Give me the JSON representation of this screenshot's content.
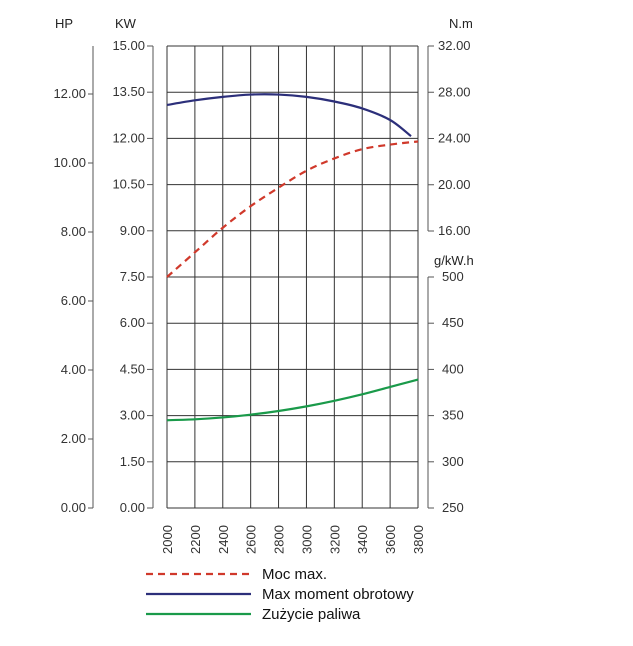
{
  "chart_data": {
    "type": "line",
    "x": [
      2000,
      2200,
      2400,
      2600,
      2800,
      3000,
      3200,
      3400,
      3600,
      3800
    ],
    "xlim": [
      2000,
      3800
    ],
    "grid": true,
    "legend_position": "bottom",
    "axes": {
      "hp": {
        "label": "HP",
        "ticks": [
          "0.00",
          "2.00",
          "4.00",
          "6.00",
          "8.00",
          "10.00",
          "12.00"
        ],
        "range": [
          0,
          12
        ]
      },
      "kw": {
        "label": "KW",
        "ticks": [
          "0.00",
          "1.50",
          "3.00",
          "4.50",
          "6.00",
          "7.50",
          "9.00",
          "10.50",
          "12.00",
          "13.50",
          "15.00"
        ],
        "range": [
          0,
          15
        ]
      },
      "nm": {
        "label": "N.m",
        "ticks": [
          "16.00",
          "20.00",
          "24.00",
          "28.00",
          "32.00"
        ],
        "range": [
          16,
          32
        ]
      },
      "gkwh": {
        "label": "g/kW.h",
        "ticks": [
          "250",
          "300",
          "350",
          "400",
          "450",
          "500"
        ],
        "range": [
          250,
          500
        ]
      }
    },
    "series": [
      {
        "name": "Moc max.",
        "axis": "kw",
        "color": "#d0392b",
        "dash": true,
        "x": [
          2000,
          2200,
          2400,
          2600,
          2800,
          3000,
          3200,
          3400,
          3600,
          3800
        ],
        "values": [
          7.5,
          8.3,
          9.1,
          9.8,
          10.4,
          10.95,
          11.35,
          11.65,
          11.8,
          11.9
        ]
      },
      {
        "name": "Max moment obrotowy",
        "axis": "nm",
        "color": "#2c2f7a",
        "dash": false,
        "x": [
          2000,
          2200,
          2400,
          2600,
          2800,
          3000,
          3200,
          3400,
          3600,
          3750
        ],
        "values": [
          26.9,
          27.3,
          27.6,
          27.8,
          27.8,
          27.6,
          27.2,
          26.6,
          25.6,
          24.2
        ]
      },
      {
        "name": "Zużycie paliwa",
        "axis": "gkwh",
        "color": "#1a9a4a",
        "dash": false,
        "x": [
          2000,
          2200,
          2400,
          2600,
          2800,
          3000,
          3200,
          3400,
          3600,
          3800
        ],
        "values": [
          345,
          346,
          348,
          351,
          355,
          360,
          366,
          373,
          381,
          389
        ]
      }
    ]
  }
}
